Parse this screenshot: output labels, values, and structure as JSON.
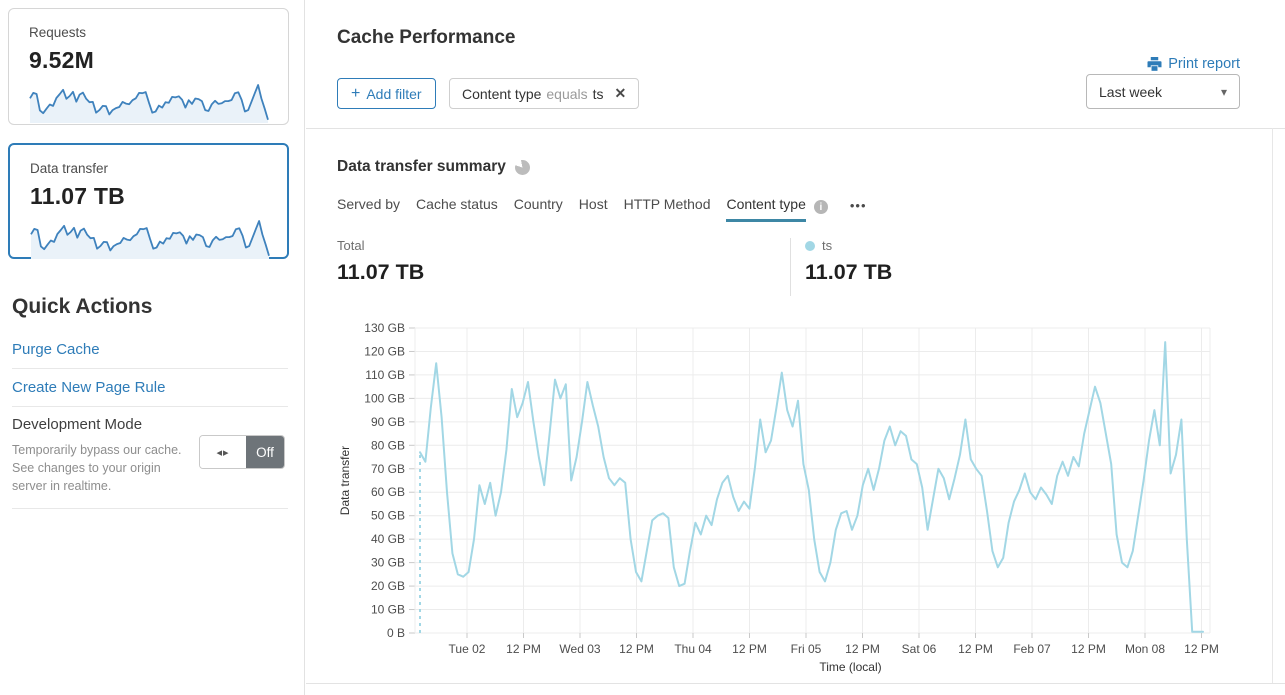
{
  "icons": {
    "plus": "+",
    "close": "✕",
    "caret": "▾",
    "ellipsis": "•••",
    "toggle_arrows": "◂▸",
    "info": "i"
  },
  "colors": {
    "link_blue": "#2e7cb8",
    "series_blue": "#a2d7e5",
    "sparkline_blue": "#3f82bd",
    "tab_underline": "#3d87a5",
    "selected_card_border": "#2e7cb8"
  },
  "sidebar": {
    "cards": [
      {
        "label": "Requests",
        "value": "9.52M",
        "selected": false,
        "sparkline": [
          77,
          96,
          92,
          34,
          24,
          40,
          55,
          50,
          78,
          92,
          107,
          75,
          85,
          100,
          65,
          90,
          97,
          75,
          63,
          64,
          26,
          35,
          50,
          49,
          20,
          35,
          42,
          46,
          64,
          58,
          56,
          70,
          77,
          96,
          95,
          99,
          61,
          26,
          30,
          51,
          44,
          63,
          61,
          82,
          80,
          84,
          72,
          44,
          70,
          57,
          76,
          74,
          67,
          35,
          32,
          56,
          68,
          57,
          59,
          67,
          67,
          71,
          95,
          98,
          72,
          30,
          35,
          65,
          95,
          124,
          76,
          40,
          1
        ]
      },
      {
        "label": "Data transfer",
        "value": "11.07 TB",
        "selected": true,
        "sparkline": [
          77,
          96,
          92,
          34,
          24,
          40,
          55,
          50,
          78,
          92,
          107,
          75,
          85,
          100,
          65,
          90,
          97,
          75,
          63,
          64,
          26,
          35,
          50,
          49,
          20,
          35,
          42,
          46,
          64,
          58,
          56,
          70,
          77,
          96,
          95,
          99,
          61,
          26,
          30,
          51,
          44,
          63,
          61,
          82,
          80,
          84,
          72,
          44,
          70,
          57,
          76,
          74,
          67,
          35,
          32,
          56,
          68,
          57,
          59,
          67,
          67,
          71,
          95,
          98,
          72,
          30,
          35,
          65,
          95,
          124,
          76,
          40,
          1
        ]
      }
    ],
    "quick_actions": {
      "title": "Quick Actions",
      "links": [
        "Purge Cache",
        "Create New Page Rule"
      ],
      "development_mode": {
        "label": "Development Mode",
        "description": "Temporarily bypass our cache. See changes to your origin server in realtime.",
        "toggle_state": "Off"
      }
    }
  },
  "header": {
    "title": "Cache Performance",
    "print_label": "Print report",
    "add_filter_label": "Add filter",
    "filter_chip": {
      "field": "Content type",
      "operator": "equals",
      "value": "ts"
    },
    "date_range": "Last week"
  },
  "summary": {
    "title": "Data transfer summary",
    "tabs": [
      {
        "label": "Served by",
        "active": false
      },
      {
        "label": "Cache status",
        "active": false
      },
      {
        "label": "Country",
        "active": false
      },
      {
        "label": "Host",
        "active": false
      },
      {
        "label": "HTTP Method",
        "active": false
      },
      {
        "label": "Content type",
        "active": true,
        "has_info": true
      }
    ],
    "more_label": "•••",
    "total": {
      "label": "Total",
      "value": "11.07 TB"
    },
    "legend": {
      "label": "ts",
      "value": "11.07 TB",
      "color": "#a2d7e5"
    }
  },
  "chart_data": {
    "type": "line",
    "title": "Data transfer summary",
    "ylabel": "Data transfer",
    "xlabel": "Time (local)",
    "unit": "GB",
    "ylim": [
      0,
      130
    ],
    "y_ticks": [
      "130 GB",
      "120 GB",
      "110 GB",
      "100 GB",
      "90 GB",
      "80 GB",
      "70 GB",
      "60 GB",
      "50 GB",
      "40 GB",
      "30 GB",
      "20 GB",
      "10 GB",
      "0 B"
    ],
    "x_ticks": [
      "Tue 02",
      "12 PM",
      "Wed 03",
      "12 PM",
      "Thu 04",
      "12 PM",
      "Fri 05",
      "12 PM",
      "Sat 06",
      "12 PM",
      "Feb 07",
      "12 PM",
      "Mon 08",
      "12 PM"
    ],
    "grid": true,
    "start_dashed": true,
    "legend_position": "above-right",
    "series": [
      {
        "name": "ts",
        "color": "#a2d7e5",
        "total": "11.07 TB",
        "values": [
          77,
          73,
          96,
          115,
          92,
          60,
          34,
          25,
          24,
          26,
          40,
          63,
          55,
          64,
          50,
          60,
          78,
          104,
          92,
          98,
          107,
          90,
          75,
          63,
          85,
          108,
          100,
          106,
          65,
          75,
          90,
          107,
          97,
          88,
          75,
          66,
          63,
          66,
          64,
          40,
          26,
          22,
          35,
          48,
          50,
          51,
          49,
          28,
          20,
          21,
          35,
          47,
          42,
          50,
          46,
          57,
          64,
          67,
          58,
          52,
          56,
          53,
          70,
          91,
          77,
          82,
          96,
          111,
          95,
          88,
          99,
          72,
          61,
          40,
          26,
          22,
          30,
          44,
          51,
          52,
          44,
          50,
          63,
          70,
          61,
          70,
          82,
          88,
          80,
          86,
          84,
          74,
          72,
          62,
          44,
          57,
          70,
          66,
          57,
          66,
          76,
          91,
          74,
          70,
          67,
          52,
          35,
          28,
          32,
          47,
          56,
          61,
          68,
          60,
          57,
          62,
          59,
          55,
          67,
          73,
          67,
          75,
          71,
          85,
          95,
          105,
          98,
          85,
          72,
          42,
          30,
          28,
          35,
          50,
          65,
          82,
          95,
          80,
          124,
          68,
          76,
          91,
          40,
          0.5,
          0.5,
          0.5
        ]
      }
    ]
  }
}
